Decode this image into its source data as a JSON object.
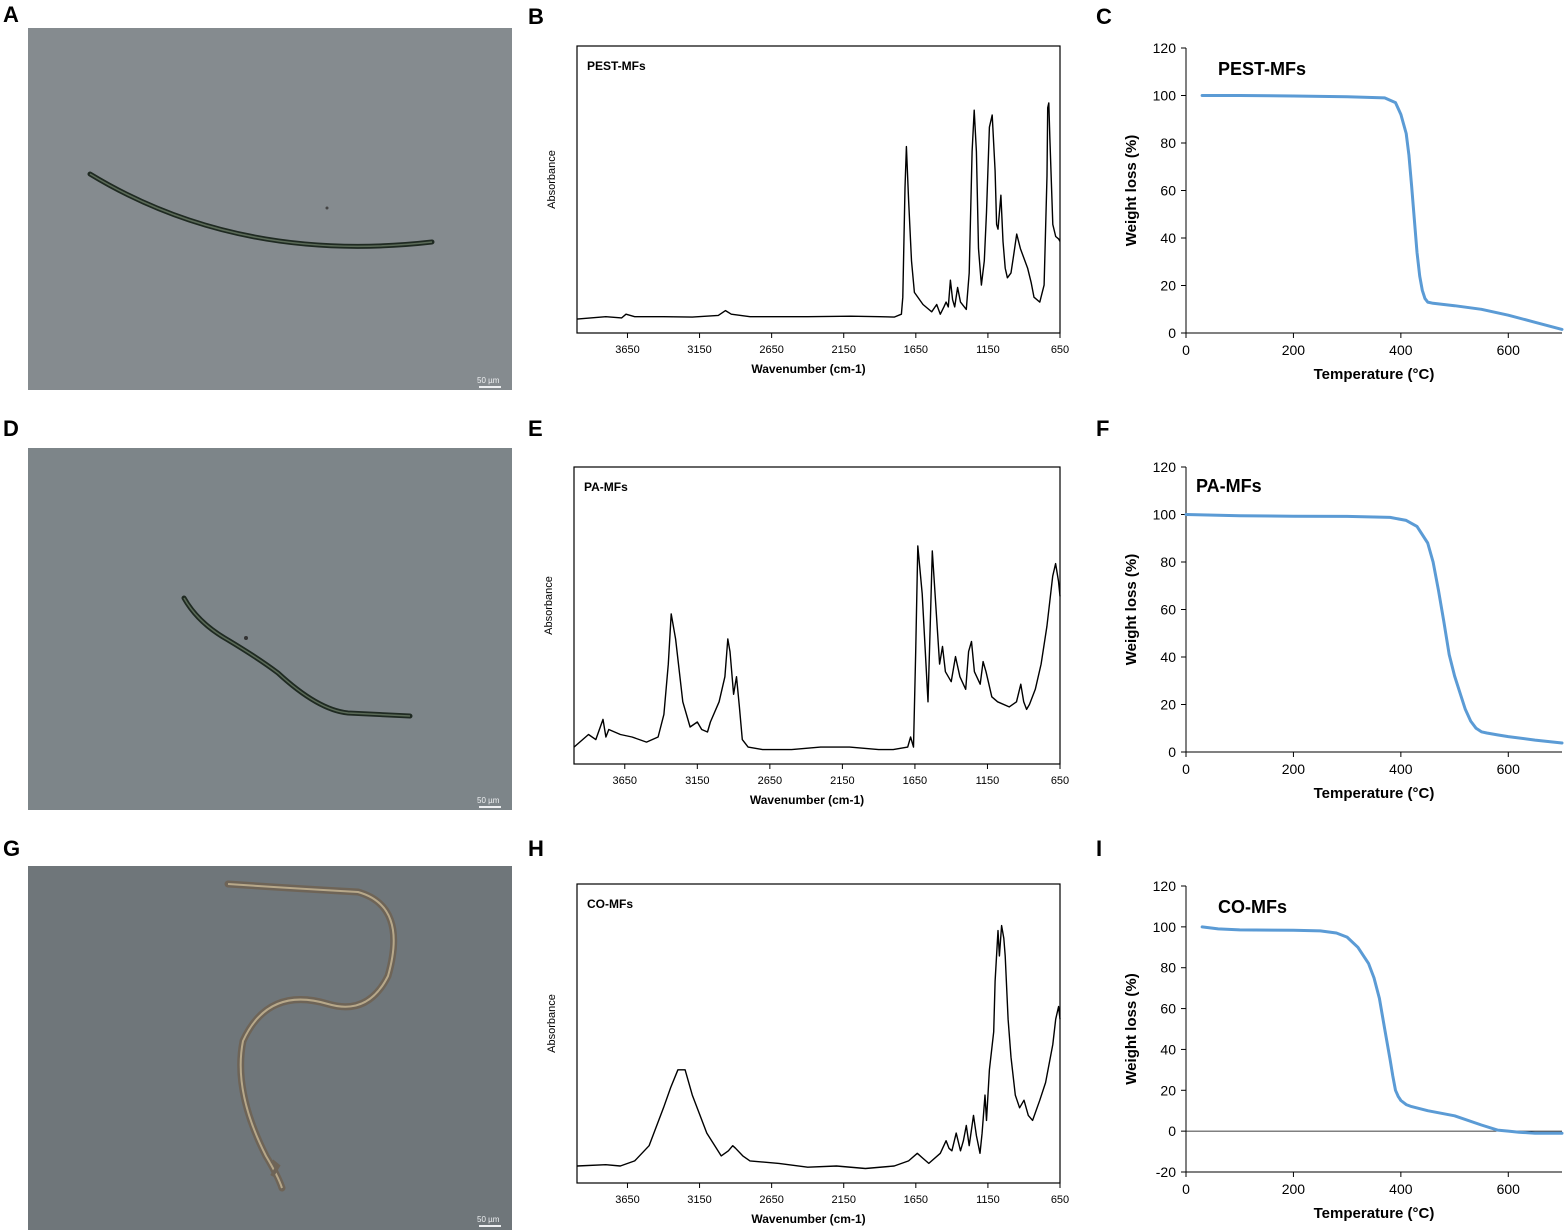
{
  "panels": {
    "A": "A",
    "B": "B",
    "C": "C",
    "D": "D",
    "E": "E",
    "F": "F",
    "G": "G",
    "H": "H",
    "I": "I"
  },
  "micrographs": [
    {
      "panel": "A",
      "scale_label": "50 µm",
      "fiber_color": "#1f2a22"
    },
    {
      "panel": "D",
      "scale_label": "50 µm",
      "fiber_color": "#1f2a22"
    },
    {
      "panel": "G",
      "scale_label": "50 µm",
      "fiber_color": "#6e6457"
    }
  ],
  "chart_data": [
    {
      "panel": "B",
      "type": "line",
      "title": "PEST-MFs",
      "xlabel": "Wavenumber (cm-1)",
      "ylabel": "Absorbance",
      "xlim": [
        4000,
        650
      ],
      "x_reversed": true,
      "xticks": [
        3650,
        3150,
        2650,
        2150,
        1650,
        1150,
        650
      ],
      "show_yticks": false,
      "ylim": [
        0,
        1
      ],
      "color": "#000000",
      "x": [
        4000,
        3800,
        3690,
        3660,
        3600,
        3400,
        3200,
        3020,
        2970,
        2930,
        2800,
        2400,
        2100,
        1900,
        1800,
        1750,
        1740,
        1725,
        1715,
        1700,
        1680,
        1660,
        1600,
        1560,
        1540,
        1505,
        1480,
        1455,
        1440,
        1425,
        1410,
        1395,
        1380,
        1360,
        1340,
        1300,
        1280,
        1260,
        1245,
        1230,
        1215,
        1195,
        1175,
        1160,
        1140,
        1120,
        1100,
        1090,
        1080,
        1060,
        1045,
        1030,
        1015,
        990,
        970,
        950,
        925,
        900,
        875,
        850,
        830,
        790,
        760,
        740,
        735,
        728,
        720,
        700,
        680,
        660,
        650
      ],
      "y": [
        0.01,
        0.02,
        0.015,
        0.03,
        0.02,
        0.02,
        0.018,
        0.025,
        0.045,
        0.03,
        0.02,
        0.02,
        0.022,
        0.02,
        0.018,
        0.03,
        0.1,
        0.55,
        0.72,
        0.5,
        0.25,
        0.12,
        0.07,
        0.05,
        0.04,
        0.07,
        0.03,
        0.06,
        0.08,
        0.06,
        0.17,
        0.09,
        0.06,
        0.14,
        0.08,
        0.05,
        0.2,
        0.7,
        0.87,
        0.7,
        0.3,
        0.15,
        0.25,
        0.45,
        0.8,
        0.85,
        0.62,
        0.4,
        0.38,
        0.52,
        0.33,
        0.22,
        0.18,
        0.2,
        0.28,
        0.36,
        0.3,
        0.26,
        0.22,
        0.16,
        0.1,
        0.08,
        0.15,
        0.6,
        0.88,
        0.9,
        0.75,
        0.4,
        0.35,
        0.34,
        0.33
      ]
    },
    {
      "panel": "C",
      "type": "line",
      "title": "PEST-MFs",
      "xlabel": "Temperature (°C)",
      "ylabel": "Weight loss (%)",
      "xlim": [
        0,
        700
      ],
      "ylim": [
        0,
        120
      ],
      "xticks": [
        0,
        200,
        400,
        600
      ],
      "yticks": [
        0,
        20,
        40,
        60,
        80,
        100,
        120
      ],
      "color": "#5b9bd5",
      "x": [
        30,
        100,
        200,
        300,
        370,
        390,
        400,
        410,
        415,
        420,
        425,
        430,
        435,
        440,
        445,
        450,
        460,
        480,
        500,
        550,
        600,
        650,
        700
      ],
      "y": [
        100,
        100,
        99.8,
        99.5,
        99,
        97,
        92,
        84,
        75,
        62,
        48,
        34,
        24,
        18,
        14.5,
        13,
        12.5,
        12,
        11.5,
        10,
        7.5,
        4.5,
        1.5
      ]
    },
    {
      "panel": "E",
      "type": "line",
      "title": "PA-MFs",
      "xlabel": "Wavenumber (cm-1)",
      "ylabel": "Absorbance",
      "xlim": [
        4000,
        650
      ],
      "x_reversed": true,
      "xticks": [
        3650,
        3150,
        2650,
        2150,
        1650,
        1150,
        650
      ],
      "show_yticks": false,
      "ylim": [
        0,
        1
      ],
      "color": "#000000",
      "x": [
        4000,
        3900,
        3850,
        3800,
        3780,
        3760,
        3720,
        3680,
        3600,
        3500,
        3420,
        3380,
        3350,
        3330,
        3300,
        3250,
        3200,
        3150,
        3120,
        3080,
        3060,
        3000,
        2960,
        2940,
        2925,
        2900,
        2880,
        2860,
        2840,
        2800,
        2700,
        2500,
        2300,
        2100,
        1900,
        1800,
        1700,
        1680,
        1660,
        1645,
        1630,
        1600,
        1560,
        1545,
        1530,
        1480,
        1460,
        1440,
        1400,
        1370,
        1340,
        1300,
        1280,
        1260,
        1240,
        1200,
        1180,
        1160,
        1140,
        1120,
        1080,
        1000,
        950,
        920,
        900,
        880,
        860,
        820,
        780,
        740,
        700,
        680,
        660,
        650
      ],
      "y": [
        0.02,
        0.07,
        0.05,
        0.13,
        0.06,
        0.09,
        0.08,
        0.07,
        0.06,
        0.04,
        0.06,
        0.15,
        0.35,
        0.55,
        0.45,
        0.2,
        0.1,
        0.12,
        0.09,
        0.08,
        0.12,
        0.2,
        0.3,
        0.45,
        0.4,
        0.23,
        0.3,
        0.18,
        0.05,
        0.02,
        0.01,
        0.01,
        0.02,
        0.02,
        0.01,
        0.01,
        0.02,
        0.06,
        0.02,
        0.4,
        0.82,
        0.63,
        0.2,
        0.5,
        0.8,
        0.35,
        0.42,
        0.32,
        0.28,
        0.38,
        0.3,
        0.25,
        0.4,
        0.44,
        0.32,
        0.27,
        0.36,
        0.32,
        0.27,
        0.22,
        0.2,
        0.18,
        0.2,
        0.27,
        0.2,
        0.17,
        0.19,
        0.25,
        0.35,
        0.5,
        0.7,
        0.75,
        0.68,
        0.62
      ]
    },
    {
      "panel": "F",
      "type": "line",
      "title": "PA-MFs",
      "xlabel": "Temperature (°C)",
      "ylabel": "Weight loss (%)",
      "xlim": [
        0,
        700
      ],
      "ylim": [
        0,
        120
      ],
      "xticks": [
        0,
        200,
        400,
        600
      ],
      "yticks": [
        0,
        20,
        40,
        60,
        80,
        100,
        120
      ],
      "color": "#5b9bd5",
      "x": [
        0,
        100,
        200,
        300,
        380,
        410,
        430,
        450,
        460,
        470,
        480,
        490,
        500,
        510,
        520,
        530,
        540,
        550,
        560,
        580,
        600,
        650,
        700
      ],
      "y": [
        100,
        99.5,
        99.3,
        99.2,
        98.8,
        97.5,
        95,
        88,
        80,
        68,
        55,
        41,
        32,
        25,
        18,
        13,
        10,
        8.5,
        8,
        7.2,
        6.5,
        5,
        3.8
      ]
    },
    {
      "panel": "H",
      "type": "line",
      "title": "CO-MFs",
      "xlabel": "Wavenumber (cm-1)",
      "ylabel": "Absorbance",
      "xlim": [
        4000,
        650
      ],
      "x_reversed": true,
      "xticks": [
        3650,
        3150,
        2650,
        2150,
        1650,
        1150,
        650
      ],
      "show_yticks": false,
      "ylim": [
        0,
        1
      ],
      "color": "#000000",
      "x": [
        4000,
        3800,
        3700,
        3600,
        3500,
        3400,
        3350,
        3300,
        3250,
        3200,
        3100,
        3000,
        2950,
        2920,
        2900,
        2850,
        2800,
        2600,
        2400,
        2200,
        2000,
        1800,
        1700,
        1640,
        1600,
        1560,
        1480,
        1440,
        1420,
        1400,
        1370,
        1340,
        1320,
        1300,
        1280,
        1250,
        1230,
        1205,
        1190,
        1170,
        1160,
        1140,
        1110,
        1100,
        1080,
        1070,
        1055,
        1040,
        1030,
        1010,
        990,
        960,
        930,
        900,
        870,
        840,
        790,
        750,
        700,
        680,
        660,
        650
      ],
      "y": [
        0.02,
        0.025,
        0.02,
        0.04,
        0.1,
        0.25,
        0.33,
        0.4,
        0.4,
        0.3,
        0.15,
        0.06,
        0.08,
        0.1,
        0.09,
        0.06,
        0.04,
        0.03,
        0.015,
        0.02,
        0.01,
        0.02,
        0.04,
        0.07,
        0.05,
        0.03,
        0.07,
        0.12,
        0.09,
        0.08,
        0.15,
        0.08,
        0.12,
        0.18,
        0.1,
        0.22,
        0.14,
        0.07,
        0.15,
        0.3,
        0.2,
        0.4,
        0.55,
        0.75,
        0.95,
        0.85,
        0.97,
        0.92,
        0.85,
        0.6,
        0.45,
        0.3,
        0.25,
        0.28,
        0.22,
        0.2,
        0.28,
        0.35,
        0.5,
        0.6,
        0.65,
        0.6
      ]
    },
    {
      "panel": "I",
      "type": "line",
      "title": "CO-MFs",
      "xlabel": "Temperature (°C)",
      "ylabel": "Weight loss (%)",
      "xlim": [
        0,
        700
      ],
      "ylim": [
        -20,
        120
      ],
      "xticks": [
        0,
        200,
        400,
        600
      ],
      "yticks": [
        -20,
        0,
        20,
        40,
        60,
        80,
        100,
        120
      ],
      "color": "#5b9bd5",
      "x": [
        30,
        60,
        100,
        200,
        250,
        280,
        300,
        320,
        340,
        350,
        360,
        370,
        380,
        385,
        390,
        395,
        400,
        410,
        420,
        450,
        500,
        550,
        580,
        600,
        620,
        650,
        700
      ],
      "y": [
        100,
        99,
        98.5,
        98.3,
        98,
        97,
        95,
        90,
        82,
        75,
        65,
        50,
        35,
        27,
        20,
        17,
        15,
        13,
        12,
        10,
        7.5,
        3,
        0.5,
        0,
        -0.5,
        -1,
        -1
      ]
    }
  ]
}
